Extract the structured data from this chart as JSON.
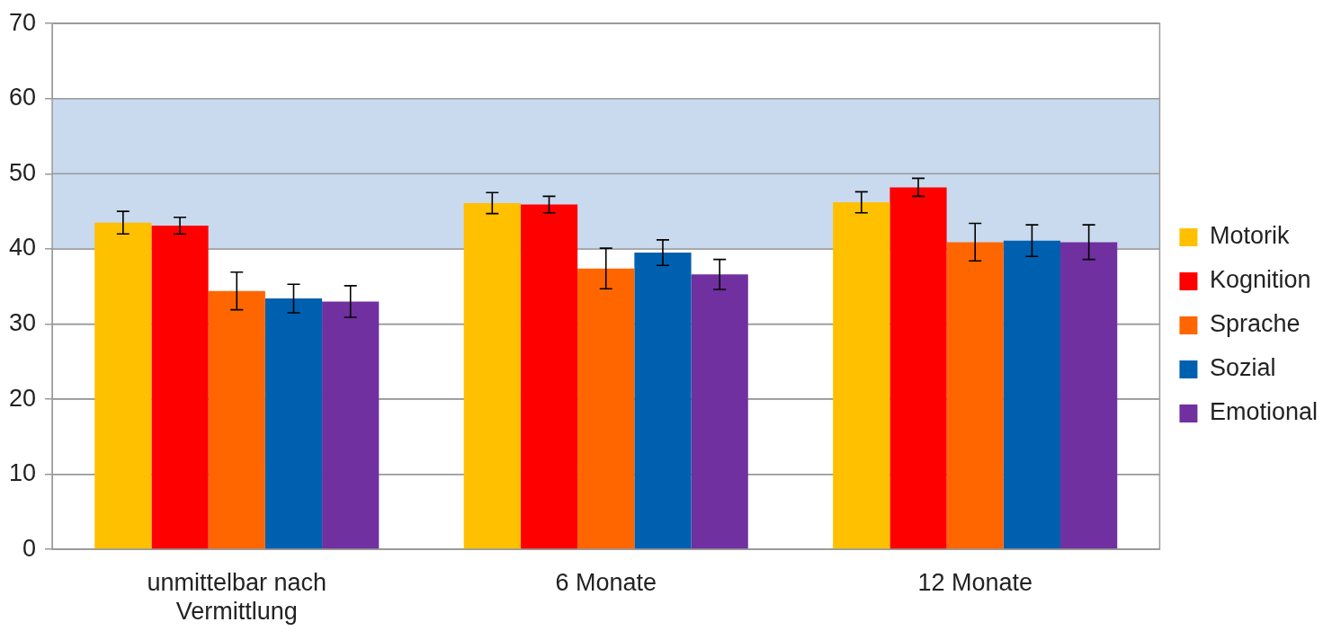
{
  "chart_data": {
    "type": "bar",
    "categories": [
      "unmittelbar nach\nVermittlung",
      "6 Monate",
      "12 Monate"
    ],
    "series": [
      {
        "name": "Motorik",
        "color": "#ffc000",
        "values": [
          43.5,
          46.1,
          46.2
        ],
        "errors": [
          1.5,
          1.4,
          1.4
        ]
      },
      {
        "name": "Kognition",
        "color": "#ff0000",
        "values": [
          43.1,
          45.9,
          48.2
        ],
        "errors": [
          1.1,
          1.1,
          1.2
        ]
      },
      {
        "name": "Sprache",
        "color": "#ff6600",
        "values": [
          34.4,
          37.4,
          40.9
        ],
        "errors": [
          2.5,
          2.7,
          2.5
        ]
      },
      {
        "name": "Sozial",
        "color": "#0060b0",
        "values": [
          33.4,
          39.5,
          41.1
        ],
        "errors": [
          1.9,
          1.7,
          2.1
        ]
      },
      {
        "name": "Emotional",
        "color": "#7030a0",
        "values": [
          33.0,
          36.6,
          40.9
        ],
        "errors": [
          2.1,
          2.0,
          2.3
        ]
      }
    ],
    "ylim": [
      0,
      70
    ],
    "yticks": [
      0,
      10,
      20,
      30,
      40,
      50,
      60,
      70
    ],
    "grid": "y",
    "legend": "right",
    "bands": [
      {
        "axis": "y",
        "from": 40,
        "to": 60,
        "color": "#c9d9ee"
      }
    ]
  }
}
